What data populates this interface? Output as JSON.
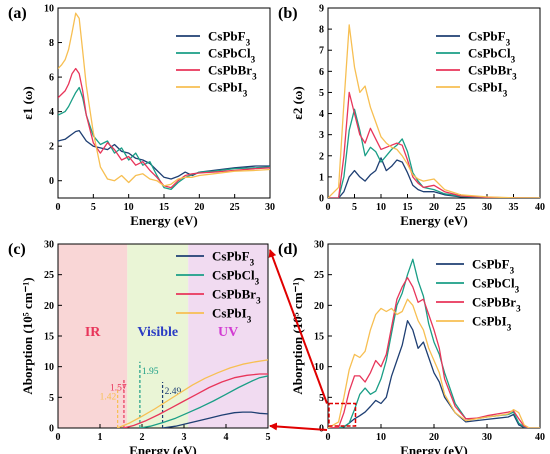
{
  "colors": {
    "CsPbF3": "#1f3f73",
    "CsPbCl3": "#1a9e86",
    "CsPbBr3": "#e8355a",
    "CsPbI3": "#f7bf52",
    "arrow": "#e00000",
    "ir_band": "#f9d6d6",
    "visible_band": "#eaf5d6",
    "uv_band": "#f1dbf1"
  },
  "chart_data": [
    {
      "id": "a",
      "panel_label": "(a)",
      "type": "line",
      "xlabel": "Energy (eV)",
      "ylabel": "ε1 (ω)",
      "xlim": [
        0,
        30
      ],
      "ylim": [
        -1,
        10
      ],
      "xticks": [
        0,
        5,
        10,
        15,
        20,
        25,
        30
      ],
      "yticks": [
        0,
        2,
        4,
        6,
        8,
        10
      ],
      "legend_position": "top-right",
      "series": [
        {
          "name": "CsPbF3",
          "key": "CsPbF3",
          "x": [
            0,
            0.5,
            1,
            1.5,
            2,
            2.5,
            3,
            3.5,
            4,
            5,
            6,
            7,
            8,
            9,
            10,
            11,
            12,
            13,
            14,
            15,
            16,
            17,
            18,
            19,
            20,
            22,
            25,
            28,
            30
          ],
          "y": [
            2.3,
            2.35,
            2.4,
            2.55,
            2.7,
            2.85,
            2.9,
            2.6,
            2.3,
            2.0,
            1.9,
            1.8,
            2.1,
            1.7,
            1.6,
            1.3,
            1.2,
            1.0,
            0.6,
            0.2,
            0.1,
            0.25,
            0.5,
            0.3,
            0.5,
            0.6,
            0.75,
            0.85,
            0.85
          ]
        },
        {
          "name": "CsPbCl3",
          "key": "CsPbCl3",
          "x": [
            0,
            0.5,
            1,
            1.5,
            2,
            2.5,
            3,
            3.5,
            4,
            5,
            6,
            7,
            8,
            9,
            10,
            11,
            12,
            13,
            14,
            15,
            16,
            17,
            18,
            19,
            20,
            22,
            25,
            28,
            30
          ],
          "y": [
            3.8,
            3.9,
            4.0,
            4.3,
            4.7,
            5.1,
            5.4,
            4.8,
            3.8,
            2.6,
            2.1,
            2.3,
            1.6,
            1.9,
            1.2,
            1.6,
            0.9,
            1.1,
            0.3,
            -0.4,
            -0.5,
            -0.1,
            0.2,
            0.35,
            0.5,
            0.55,
            0.7,
            0.75,
            0.8
          ]
        },
        {
          "name": "CsPbBr3",
          "key": "CsPbBr3",
          "x": [
            0,
            0.5,
            1,
            1.5,
            2,
            2.5,
            3,
            3.5,
            4,
            5,
            6,
            7,
            8,
            9,
            10,
            11,
            12,
            13,
            14,
            15,
            16,
            17,
            18,
            19,
            20,
            22,
            25,
            28,
            30
          ],
          "y": [
            4.8,
            5.0,
            5.2,
            5.6,
            6.2,
            6.5,
            6.2,
            5.2,
            3.8,
            2.2,
            1.6,
            2.2,
            1.8,
            1.2,
            1.4,
            0.9,
            1.1,
            0.6,
            0.2,
            -0.3,
            -0.4,
            0.0,
            0.3,
            0.4,
            0.45,
            0.5,
            0.6,
            0.7,
            0.75
          ]
        },
        {
          "name": "CsPbI3",
          "key": "CsPbI3",
          "x": [
            0,
            0.5,
            1,
            1.5,
            2,
            2.5,
            3,
            3.5,
            4,
            5,
            6,
            7,
            8,
            9,
            10,
            11,
            12,
            13,
            14,
            15,
            16,
            17,
            18,
            19,
            20,
            22,
            25,
            28,
            30
          ],
          "y": [
            6.5,
            6.7,
            7.0,
            7.6,
            8.6,
            9.7,
            9.4,
            7.5,
            5.5,
            2.8,
            0.8,
            0.1,
            0.0,
            0.3,
            -0.1,
            0.3,
            0.4,
            0.1,
            0.0,
            -0.3,
            -0.2,
            0.1,
            0.2,
            0.2,
            0.3,
            0.4,
            0.55,
            0.6,
            0.65
          ]
        }
      ]
    },
    {
      "id": "b",
      "panel_label": "(b)",
      "type": "line",
      "xlabel": "Energy (eV)",
      "ylabel": "ε2 (ω)",
      "xlim": [
        0,
        40
      ],
      "ylim": [
        0,
        9
      ],
      "xticks": [
        0,
        5,
        10,
        15,
        20,
        25,
        30,
        35,
        40
      ],
      "yticks": [
        0,
        1,
        2,
        3,
        4,
        5,
        6,
        7,
        8,
        9
      ],
      "legend_position": "top-right",
      "series": [
        {
          "name": "CsPbF3",
          "key": "CsPbF3",
          "x": [
            0,
            2,
            3,
            4,
            5,
            6,
            7,
            8,
            9,
            10,
            11,
            12,
            13,
            14,
            15,
            16,
            17,
            18,
            20,
            22,
            25,
            30,
            35,
            40
          ],
          "y": [
            0,
            0,
            0.3,
            1.0,
            1.3,
            1.0,
            0.8,
            1.1,
            1.3,
            1.9,
            1.3,
            1.5,
            1.8,
            1.7,
            1.2,
            0.6,
            0.4,
            0.3,
            0.3,
            0.15,
            0.05,
            0.02,
            0.01,
            0
          ]
        },
        {
          "name": "CsPbCl3",
          "key": "CsPbCl3",
          "x": [
            0,
            2,
            3,
            4,
            5,
            6,
            7,
            8,
            9,
            10,
            11,
            12,
            13,
            14,
            15,
            16,
            17,
            18,
            20,
            22,
            25,
            30,
            35,
            40
          ],
          "y": [
            0,
            0,
            1.0,
            3.2,
            4.2,
            3.2,
            2.0,
            2.4,
            2.2,
            1.7,
            2.0,
            2.3,
            2.5,
            2.8,
            2.2,
            1.2,
            0.8,
            0.5,
            0.4,
            0.2,
            0.08,
            0.03,
            0.01,
            0
          ]
        },
        {
          "name": "CsPbBr3",
          "key": "CsPbBr3",
          "x": [
            0,
            2,
            3,
            4,
            5,
            6,
            7,
            8,
            9,
            10,
            11,
            12,
            13,
            14,
            15,
            16,
            17,
            18,
            20,
            22,
            25,
            30,
            35,
            40
          ],
          "y": [
            0,
            0,
            2.0,
            5.0,
            4.0,
            3.0,
            2.6,
            3.3,
            2.8,
            2.3,
            2.4,
            2.5,
            2.6,
            2.5,
            1.8,
            1.0,
            0.7,
            0.5,
            0.6,
            0.3,
            0.1,
            0.03,
            0.01,
            0
          ]
        },
        {
          "name": "CsPbI3",
          "key": "CsPbI3",
          "x": [
            0,
            2,
            3,
            4,
            5,
            6,
            7,
            8,
            9,
            10,
            11,
            12,
            13,
            14,
            15,
            16,
            17,
            18,
            20,
            22,
            25,
            30,
            35,
            40
          ],
          "y": [
            0,
            0.5,
            4.5,
            8.2,
            6.2,
            5.0,
            5.3,
            4.3,
            3.6,
            2.9,
            2.6,
            2.4,
            2.3,
            2.0,
            1.6,
            1.1,
            0.9,
            0.8,
            0.9,
            0.4,
            0.15,
            0.05,
            0.01,
            0
          ]
        }
      ]
    },
    {
      "id": "c",
      "panel_label": "(c)",
      "type": "line",
      "xlabel": "Energy (eV)",
      "ylabel": "Aborption (10⁵ cm⁻¹)",
      "xlim": [
        0,
        5
      ],
      "ylim": [
        0,
        30
      ],
      "xticks": [
        0,
        1,
        2,
        3,
        4,
        5
      ],
      "yticks": [
        0,
        5,
        10,
        15,
        20,
        25,
        30
      ],
      "legend_position": "top-right",
      "regions": [
        {
          "label": "IR",
          "from": 0,
          "to": 1.65,
          "color_key": "ir_band",
          "text_color": "#e8355a"
        },
        {
          "label": "Visible",
          "from": 1.65,
          "to": 3.1,
          "color_key": "visible_band",
          "text_color": "#2b3cc4"
        },
        {
          "label": "UV",
          "from": 3.1,
          "to": 5,
          "color_key": "uv_band",
          "text_color": "#d23ad2"
        }
      ],
      "band_gap_markers": [
        {
          "label": "1.42",
          "x": 1.42,
          "key": "CsPbI3"
        },
        {
          "label": "1.57",
          "x": 1.57,
          "key": "CsPbBr3"
        },
        {
          "label": "1.95",
          "x": 1.95,
          "key": "CsPbCl3"
        },
        {
          "label": "2.49",
          "x": 2.49,
          "key": "CsPbF3"
        }
      ],
      "series": [
        {
          "name": "CsPbF3",
          "key": "CsPbF3",
          "x": [
            2.49,
            2.8,
            3.0,
            3.3,
            3.6,
            3.9,
            4.2,
            4.4,
            4.6,
            4.8,
            5.0
          ],
          "y": [
            0,
            0.3,
            0.6,
            1.1,
            1.6,
            2.1,
            2.5,
            2.6,
            2.6,
            2.4,
            2.3
          ]
        },
        {
          "name": "CsPbCl3",
          "key": "CsPbCl3",
          "x": [
            1.95,
            2.2,
            2.5,
            2.8,
            3.1,
            3.4,
            3.7,
            4.0,
            4.3,
            4.6,
            4.8,
            5.0
          ],
          "y": [
            0,
            0.3,
            0.9,
            1.6,
            2.5,
            3.4,
            4.4,
            5.5,
            6.6,
            7.6,
            8.2,
            8.5
          ]
        },
        {
          "name": "CsPbBr3",
          "key": "CsPbBr3",
          "x": [
            1.57,
            1.8,
            2.1,
            2.4,
            2.7,
            3.0,
            3.3,
            3.6,
            3.9,
            4.2,
            4.5,
            4.8,
            5.0
          ],
          "y": [
            0,
            0.4,
            1.2,
            2.2,
            3.3,
            4.4,
            5.5,
            6.6,
            7.5,
            8.2,
            8.6,
            8.8,
            8.8
          ]
        },
        {
          "name": "CsPbI3",
          "key": "CsPbI3",
          "x": [
            1.42,
            1.7,
            2.0,
            2.3,
            2.6,
            2.9,
            3.2,
            3.5,
            3.8,
            4.1,
            4.4,
            4.7,
            5.0
          ],
          "y": [
            0,
            0.8,
            1.9,
            3.1,
            4.4,
            5.7,
            7.0,
            8.1,
            9.0,
            9.8,
            10.4,
            10.8,
            11.1
          ]
        }
      ]
    },
    {
      "id": "d",
      "panel_label": "(d)",
      "type": "line",
      "xlabel": "Energy (eV)",
      "ylabel": "Aborption (10⁵ cm⁻¹)",
      "xlim": [
        0,
        40
      ],
      "ylim": [
        0,
        30
      ],
      "xticks": [
        0,
        10,
        20,
        30,
        40
      ],
      "yticks": [
        0,
        5,
        10,
        15,
        20,
        25,
        30
      ],
      "legend_position": "top-right",
      "series": [
        {
          "name": "CsPbF3",
          "key": "CsPbF3",
          "x": [
            0,
            2,
            3,
            4,
            5,
            6,
            7,
            8,
            9,
            10,
            11,
            12,
            13,
            14,
            15,
            16,
            17,
            18,
            19,
            20,
            21,
            22,
            24,
            26,
            28,
            30,
            32,
            34,
            35,
            36,
            37,
            38,
            40
          ],
          "y": [
            0,
            0,
            0.2,
            0.8,
            1.5,
            2.0,
            2.6,
            3.5,
            4.5,
            4.0,
            5.0,
            8.5,
            11.0,
            13.5,
            17.5,
            16.0,
            13.0,
            14.0,
            11.5,
            9.0,
            7.5,
            5.0,
            2.5,
            1.0,
            1.2,
            1.4,
            1.6,
            1.8,
            2.2,
            0.5,
            0.1,
            0,
            0
          ]
        },
        {
          "name": "CsPbCl3",
          "key": "CsPbCl3",
          "x": [
            0,
            2,
            3,
            4,
            5,
            6,
            7,
            8,
            9,
            10,
            11,
            12,
            13,
            14,
            15,
            16,
            17,
            18,
            19,
            20,
            21,
            22,
            24,
            26,
            28,
            30,
            32,
            34,
            35,
            36,
            37,
            38,
            40
          ],
          "y": [
            0,
            0,
            0.2,
            0.8,
            3.0,
            5.5,
            6.5,
            5.5,
            6.0,
            8.0,
            11.0,
            15.5,
            20.0,
            22.0,
            25.0,
            27.5,
            24.0,
            21.5,
            17.0,
            14.0,
            12.0,
            9.0,
            4.0,
            1.5,
            1.5,
            1.8,
            2.0,
            2.2,
            2.6,
            0.8,
            0.2,
            0,
            0
          ]
        },
        {
          "name": "CsPbBr3",
          "key": "CsPbBr3",
          "x": [
            0,
            2,
            3,
            4,
            5,
            6,
            7,
            8,
            9,
            10,
            11,
            12,
            13,
            14,
            15,
            16,
            17,
            18,
            19,
            20,
            21,
            22,
            24,
            26,
            28,
            30,
            32,
            34,
            35,
            36,
            37,
            38,
            40
          ],
          "y": [
            0,
            0.1,
            2.5,
            6.0,
            8.5,
            8.5,
            7.5,
            9.0,
            11.0,
            10.0,
            12.0,
            16.5,
            21.0,
            23.0,
            24.5,
            23.0,
            20.5,
            21.0,
            18.5,
            16.0,
            13.0,
            8.0,
            3.5,
            1.5,
            1.6,
            2.0,
            2.3,
            2.6,
            2.8,
            1.5,
            0.3,
            0,
            0
          ]
        },
        {
          "name": "CsPbI3",
          "key": "CsPbI3",
          "x": [
            0,
            2,
            3,
            4,
            5,
            6,
            7,
            8,
            9,
            10,
            11,
            12,
            13,
            14,
            15,
            16,
            17,
            18,
            19,
            20,
            21,
            22,
            24,
            26,
            28,
            30,
            32,
            34,
            35,
            36,
            37,
            38,
            40
          ],
          "y": [
            0,
            1.0,
            5.0,
            9.5,
            12.0,
            11.5,
            12.5,
            16.0,
            18.5,
            19.5,
            19.0,
            19.5,
            18.5,
            19.0,
            21.0,
            20.0,
            17.5,
            16.0,
            13.0,
            11.0,
            9.0,
            5.5,
            2.5,
            1.2,
            1.5,
            1.8,
            2.0,
            2.3,
            3.0,
            2.5,
            0.5,
            0,
            0
          ]
        }
      ]
    }
  ]
}
